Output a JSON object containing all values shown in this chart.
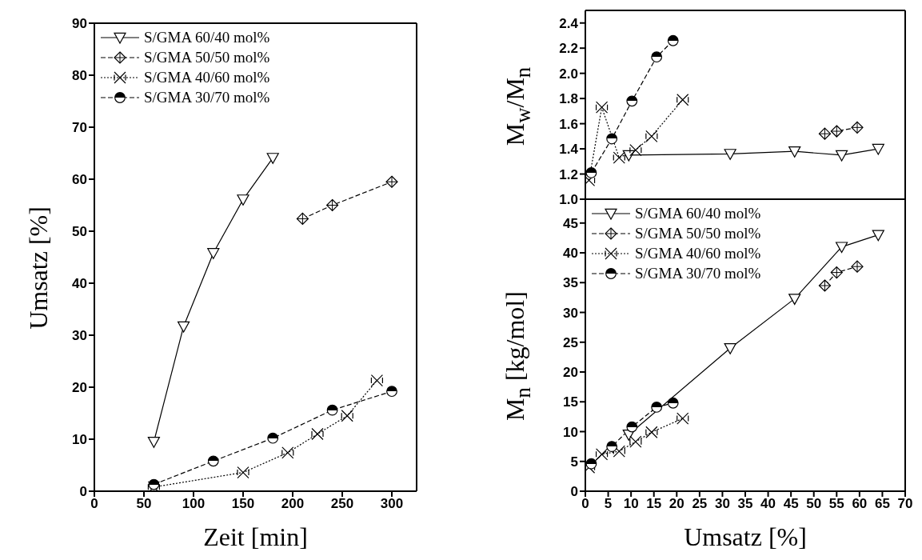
{
  "chart_data": [
    {
      "type": "line",
      "xlabel": "Zeit [min]",
      "ylabel": "Umsatz [%]",
      "xlim": [
        0,
        325
      ],
      "xticks": [
        0,
        50,
        100,
        150,
        200,
        250,
        300
      ],
      "ylim": [
        0,
        90
      ],
      "yticks": [
        0,
        10,
        20,
        30,
        40,
        50,
        60,
        70,
        80,
        90
      ],
      "legend": "top left",
      "series": [
        {
          "name": "S/GMA 60/40 mol%",
          "color": "#000000",
          "marker": "triangle",
          "line_style": "solid",
          "x": [
            60,
            90,
            120,
            150,
            180
          ],
          "values": [
            9.5,
            31.7,
            45.8,
            56.1,
            64.1
          ]
        },
        {
          "name": "S/GMA 50/50 mol%",
          "color": "#000000",
          "marker": "diamond",
          "line_style": "dashed",
          "x": [
            210,
            240,
            300
          ],
          "values": [
            52.4,
            55,
            59.5
          ]
        },
        {
          "name": "S/GMA 40/60 mol%",
          "color": "#000000",
          "marker": "cross",
          "line_style": "dotted",
          "x": [
            60,
            150,
            195,
            225,
            255,
            285
          ],
          "values": [
            0.8,
            3.6,
            7.4,
            11,
            14.5,
            21.3
          ]
        },
        {
          "name": "S/GMA 30/70 mol%",
          "color": "#000000",
          "marker": "circle",
          "line_style": "dashed",
          "x": [
            60,
            120,
            180,
            240,
            300
          ],
          "values": [
            1.3,
            5.8,
            10.2,
            15.6,
            19.2
          ]
        }
      ]
    },
    {
      "type": "line",
      "ylabel": "M$_{w}$/M$_{n}$",
      "xlim": [
        0,
        70
      ],
      "xticks": [
        0,
        5,
        10,
        15,
        20,
        25,
        30,
        35,
        40,
        45,
        50,
        55,
        60,
        65,
        70
      ],
      "ylim": [
        1.0,
        2.5
      ],
      "yticks": [
        {
          "value": 1.0,
          "label": "1.0"
        },
        1.2,
        1.4,
        1.6,
        1.8,
        {
          "value": 2.0,
          "label": "2.0"
        },
        2.2,
        2.4
      ],
      "tick_labels": "y",
      "series": [
        {
          "color": "#000000",
          "marker": "triangle",
          "line_style": "solid",
          "x": [
            9.5,
            31.7,
            45.8,
            56.1,
            64.1
          ],
          "values": [
            1.35,
            1.36,
            1.38,
            1.35,
            1.4
          ]
        },
        {
          "color": "#000000",
          "marker": "diamond",
          "line_style": "dashed",
          "x": [
            52.4,
            55,
            59.5
          ],
          "values": [
            1.52,
            1.54,
            1.57
          ]
        },
        {
          "color": "#000000",
          "marker": "cross",
          "line_style": "dotted",
          "x": [
            0.8,
            3.6,
            7.4,
            11,
            14.5,
            21.3
          ],
          "values": [
            1.15,
            1.73,
            1.33,
            1.39,
            1.5,
            1.79
          ]
        },
        {
          "color": "#000000",
          "marker": "circle",
          "line_style": "dashed",
          "x": [
            1.3,
            5.8,
            10.2,
            15.6,
            19.2
          ],
          "values": [
            1.21,
            1.48,
            1.78,
            2.13,
            2.26
          ]
        }
      ]
    },
    {
      "type": "line",
      "xlabel": "Umsatz [%]",
      "ylabel": "M$_{n}$ [kg/mol]",
      "xlim": [
        0,
        70
      ],
      "xticks": [
        0,
        5,
        10,
        15,
        20,
        25,
        30,
        35,
        40,
        45,
        50,
        55,
        60,
        65,
        70
      ],
      "ylim": [
        0,
        49
      ],
      "yticks": [
        0,
        5,
        10,
        15,
        20,
        25,
        30,
        35,
        40,
        45
      ],
      "legend": "top left",
      "series": [
        {
          "name": "S/GMA 60/40 mol%",
          "color": "#000000",
          "marker": "triangle",
          "line_style": "solid",
          "x": [
            9.5,
            31.7,
            45.8,
            56.1,
            64.1
          ],
          "values": [
            9.5,
            24,
            32.3,
            41,
            43
          ]
        },
        {
          "name": "S/GMA 50/50 mol%",
          "color": "#000000",
          "marker": "diamond",
          "line_style": "dashed",
          "x": [
            52.4,
            55,
            59.5
          ],
          "values": [
            34.5,
            36.7,
            37.7
          ]
        },
        {
          "name": "S/GMA 40/60 mol%",
          "color": "#000000",
          "marker": "cross",
          "line_style": "dotted",
          "x": [
            0.8,
            3.6,
            7.4,
            11,
            14.5,
            21.3
          ],
          "values": [
            4,
            6.2,
            6.7,
            8.3,
            9.9,
            12.2
          ]
        },
        {
          "name": "S/GMA 30/70 mol%",
          "color": "#000000",
          "marker": "circle",
          "line_style": "dashed",
          "x": [
            1.3,
            5.8,
            10.2,
            15.6,
            19.2
          ],
          "values": [
            4.6,
            7.5,
            10.8,
            14.1,
            14.8
          ]
        }
      ]
    }
  ]
}
